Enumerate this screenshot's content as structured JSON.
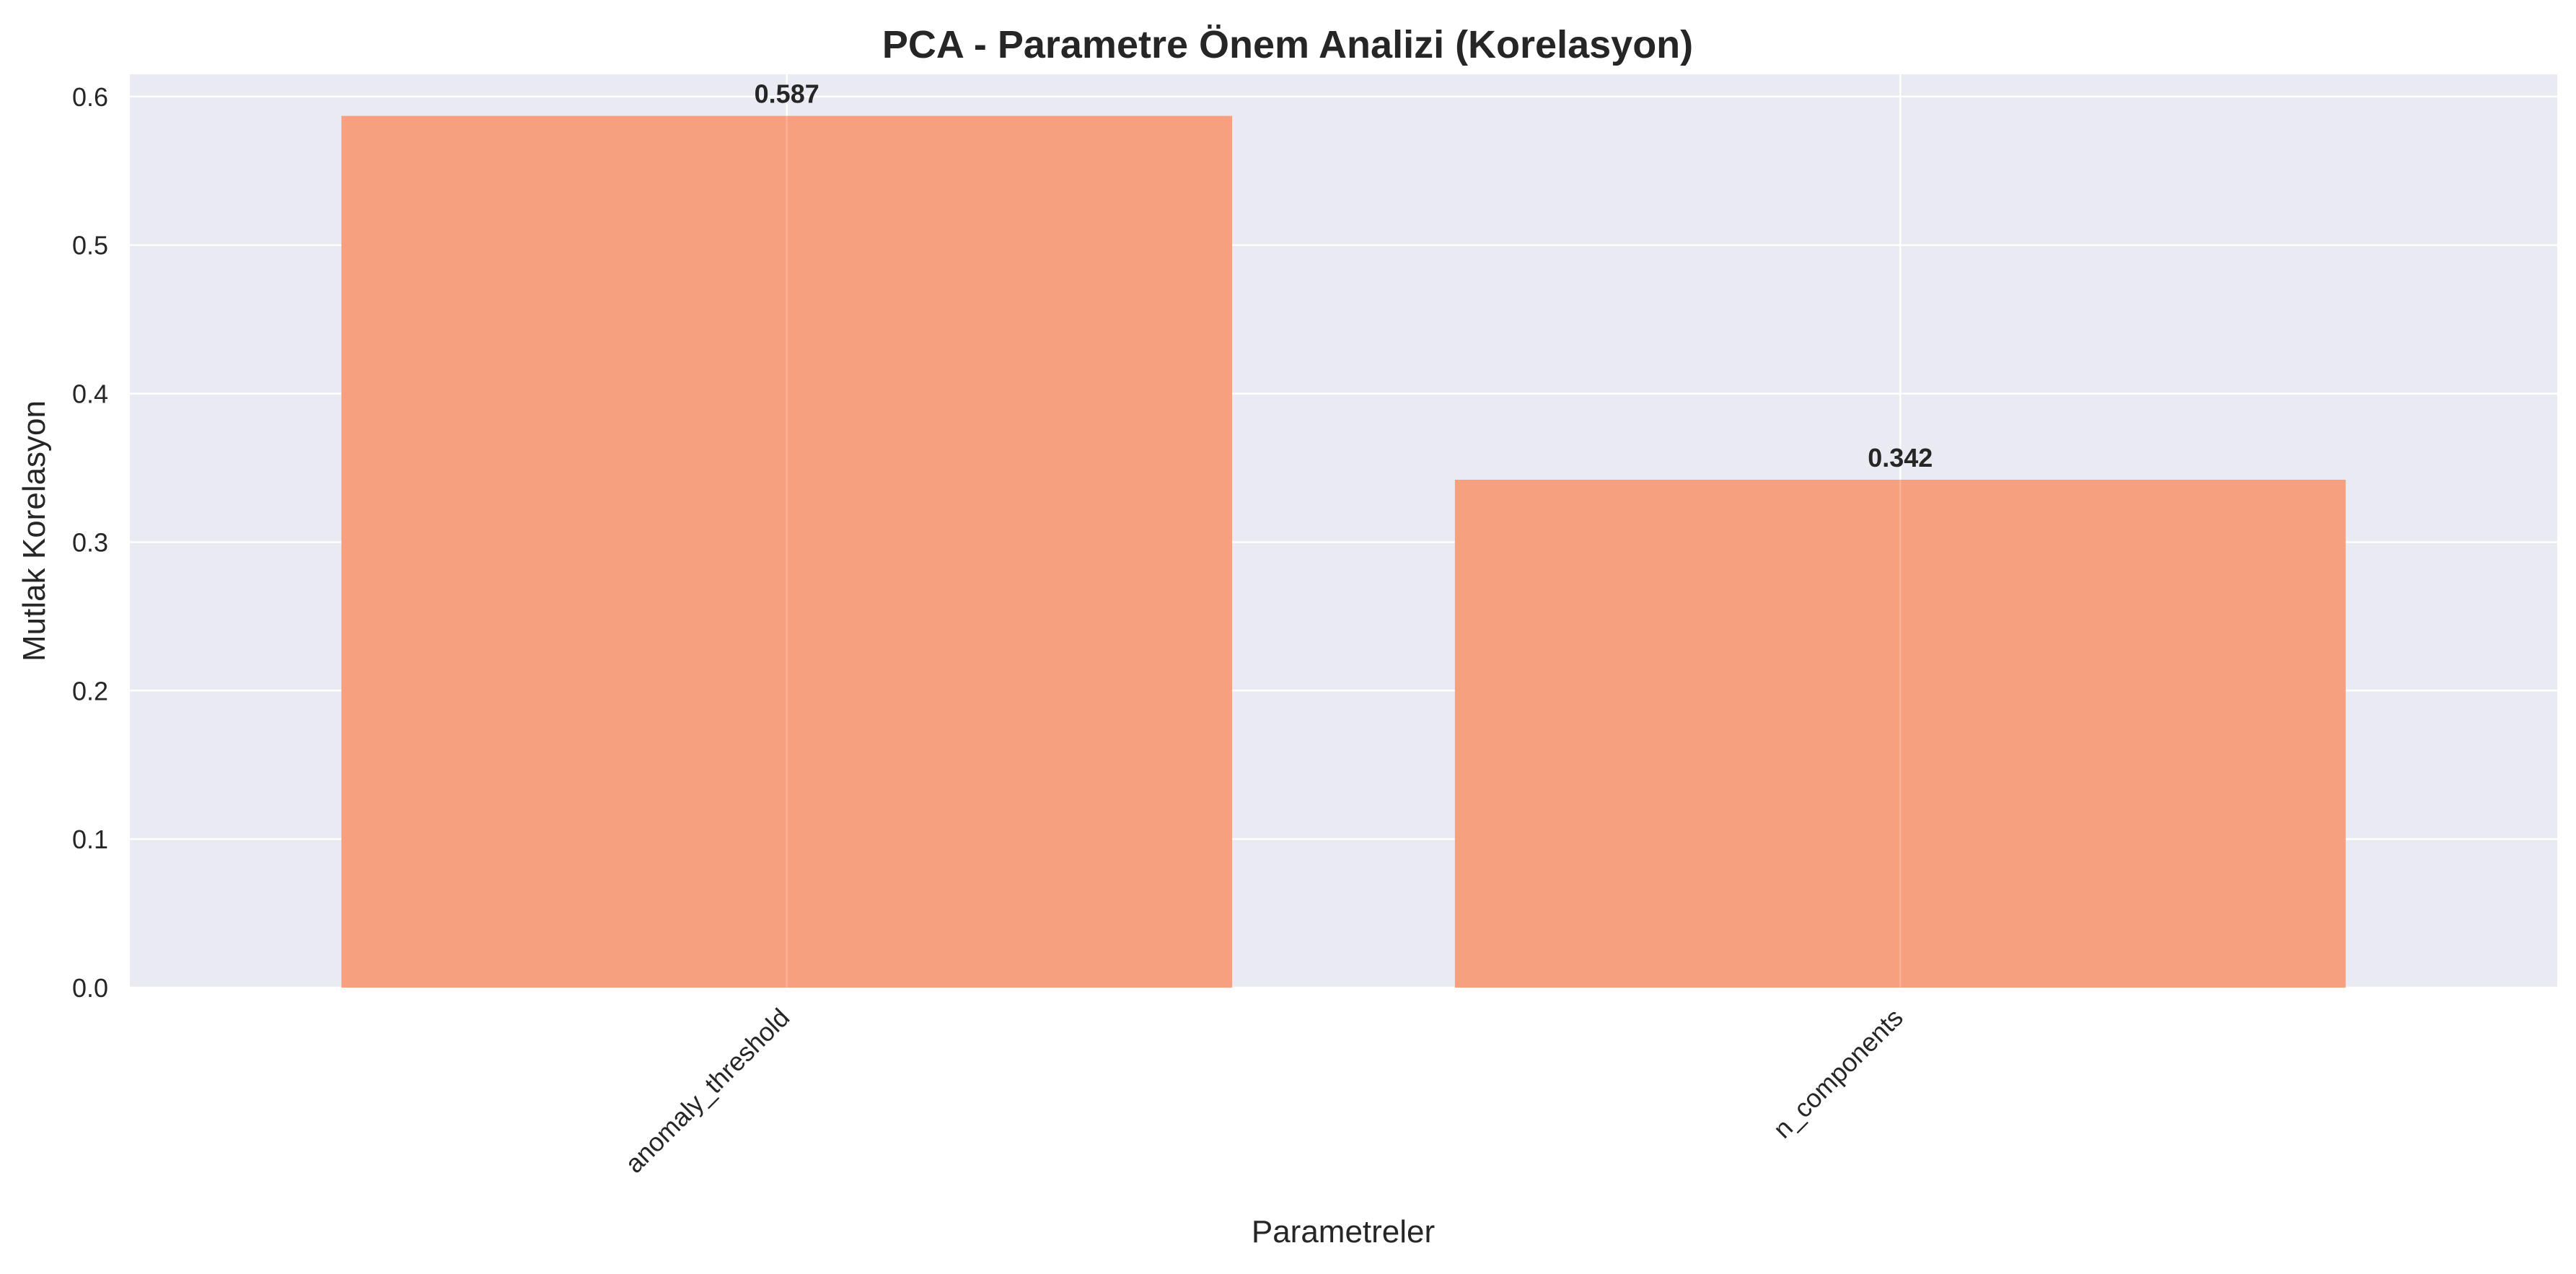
{
  "chart_data": {
    "type": "bar",
    "title": "PCA - Parametre Önem Analizi (Korelasyon)",
    "xlabel": "Parametreler",
    "ylabel": "Mutlak Korelasyon",
    "categories": [
      "anomaly_threshold",
      "n_components"
    ],
    "values": [
      0.587,
      0.342
    ],
    "data_labels": [
      "0.587",
      "0.342"
    ],
    "ylim": [
      0,
      0.615
    ],
    "yticks": [
      0.0,
      0.1,
      0.2,
      0.3,
      0.4,
      0.5,
      0.6
    ],
    "ytick_labels": [
      "0.0",
      "0.1",
      "0.2",
      "0.3",
      "0.4",
      "0.5",
      "0.6"
    ],
    "grid": true,
    "legend": "none",
    "colors": {
      "bar": "#f7a080",
      "plot_background": "#eaeaf2",
      "grid": "#ffffff",
      "text": "#262626"
    }
  }
}
